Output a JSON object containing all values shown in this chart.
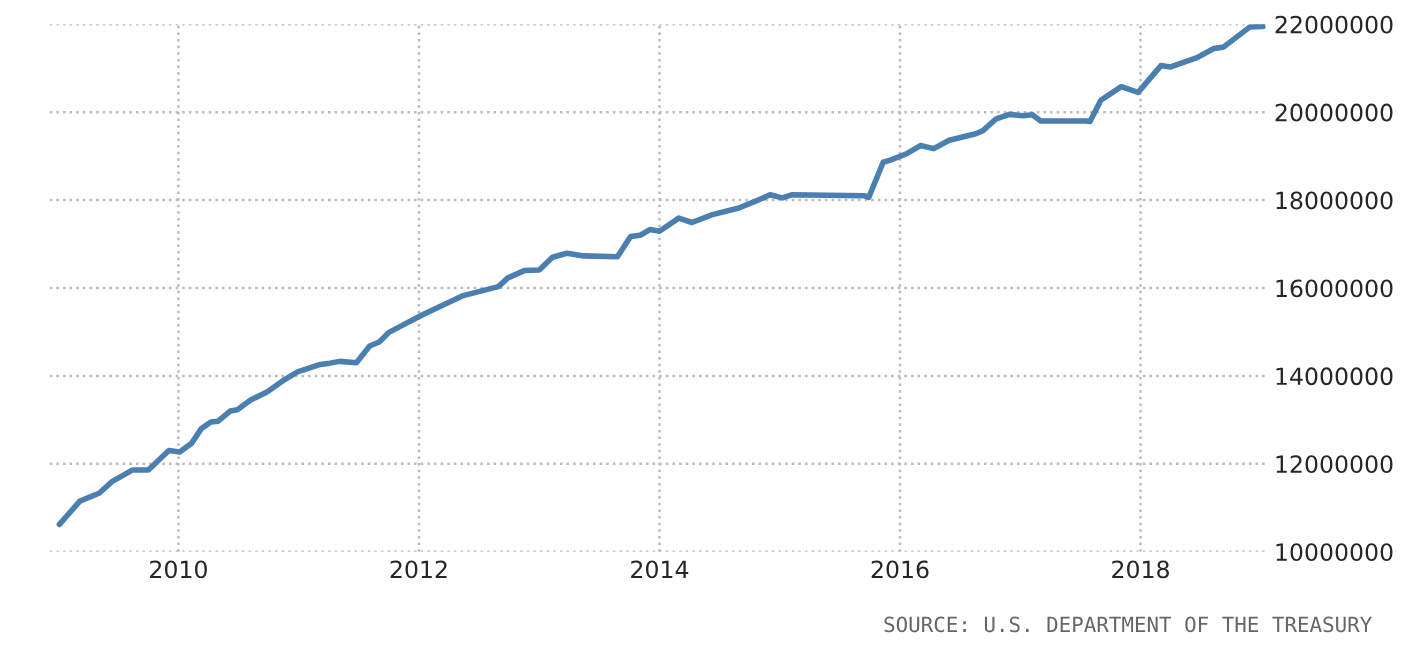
{
  "chart_data": {
    "type": "line",
    "x": [
      2009.01,
      2009.18,
      2009.34,
      2009.45,
      2009.62,
      2009.75,
      2009.92,
      2010.01,
      2010.11,
      2010.19,
      2010.27,
      2010.33,
      2010.43,
      2010.49,
      2010.6,
      2010.74,
      2010.88,
      2010.99,
      2011.18,
      2011.26,
      2011.34,
      2011.48,
      2011.59,
      2011.67,
      2011.75,
      2012.03,
      2012.36,
      2012.66,
      2012.74,
      2012.88,
      2013.0,
      2013.11,
      2013.23,
      2013.37,
      2013.65,
      2013.76,
      2013.84,
      2013.92,
      2014.0,
      2014.16,
      2014.27,
      2014.44,
      2014.66,
      2014.82,
      2014.92,
      2015.02,
      2015.1,
      2015.7,
      2015.74,
      2015.86,
      2015.92,
      2016.06,
      2016.17,
      2016.28,
      2016.41,
      2016.63,
      2016.69,
      2016.8,
      2016.91,
      2017.02,
      2017.1,
      2017.17,
      2017.54,
      2017.58,
      2017.67,
      2017.84,
      2017.98,
      2018.17,
      2018.25,
      2018.47,
      2018.61,
      2018.69,
      2018.91,
      2019.02
    ],
    "series": [
      {
        "color": "#4a7fb0",
        "values": [
          10620000,
          11150000,
          11330000,
          11600000,
          11860000,
          11860000,
          12300000,
          12270000,
          12470000,
          12800000,
          12950000,
          12970000,
          13200000,
          13230000,
          13450000,
          13640000,
          13910000,
          14090000,
          14260000,
          14290000,
          14330000,
          14300000,
          14680000,
          14770000,
          14990000,
          15390000,
          15820000,
          16030000,
          16230000,
          16400000,
          16410000,
          16700000,
          16790000,
          16730000,
          16710000,
          17170000,
          17200000,
          17330000,
          17290000,
          17590000,
          17490000,
          17670000,
          17820000,
          18000000,
          18120000,
          18050000,
          18120000,
          18100000,
          18060000,
          18860000,
          18910000,
          19060000,
          19240000,
          19170000,
          19360000,
          19510000,
          19580000,
          19850000,
          19950000,
          19920000,
          19940000,
          19800000,
          19800000,
          19790000,
          20270000,
          20580000,
          20450000,
          21060000,
          21030000,
          21240000,
          21450000,
          21480000,
          21940000,
          21950000
        ]
      }
    ],
    "xlim": [
      2008.93,
      2019.04
    ],
    "xticks": [
      2010,
      2012,
      2014,
      2016,
      2018
    ],
    "ylim": [
      10000000,
      22000000
    ],
    "yticks": [
      10000000,
      12000000,
      14000000,
      16000000,
      18000000,
      20000000,
      22000000
    ],
    "grid": true,
    "legend": false,
    "marker": "none",
    "line_style": "solid",
    "annotations": [
      "SOURCE: U.S. DEPARTMENT OF THE TREASURY"
    ]
  }
}
